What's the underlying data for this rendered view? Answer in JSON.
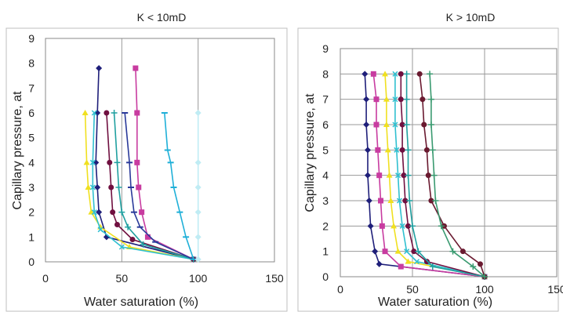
{
  "chart_data": [
    {
      "type": "line",
      "title": "K < 10mD",
      "xlabel": "Water saturation (%)",
      "ylabel": "Capillary pressure, at",
      "xlim": [
        0,
        150
      ],
      "ylim": [
        0,
        9
      ],
      "x_ticks": [
        0,
        50,
        100,
        150
      ],
      "y_ticks": [
        0,
        1,
        2,
        3,
        4,
        5,
        6,
        7,
        8,
        9
      ],
      "grid": "vertical",
      "legend": "none",
      "series": [
        {
          "color": "#1f1f7a",
          "marker": "diamond",
          "points": [
            [
              35,
              7.8
            ],
            [
              34,
              6
            ],
            [
              33,
              4
            ],
            [
              34,
              3
            ],
            [
              35,
              2
            ],
            [
              40,
              1
            ],
            [
              97,
              0.1
            ]
          ]
        },
        {
          "color": "#c83ca0",
          "marker": "square",
          "points": [
            [
              59,
              7.8
            ],
            [
              60,
              6
            ],
            [
              60,
              4
            ],
            [
              61,
              3
            ],
            [
              63,
              2
            ],
            [
              67,
              1
            ],
            [
              97,
              0.1
            ]
          ]
        },
        {
          "color": "#f0e020",
          "marker": "triangle",
          "points": [
            [
              26,
              6
            ],
            [
              27,
              4
            ],
            [
              28,
              3
            ],
            [
              30,
              2
            ],
            [
              36,
              1.4
            ],
            [
              55,
              0.6
            ],
            [
              97,
              0.1
            ]
          ]
        },
        {
          "color": "#30c0d0",
          "marker": "x",
          "points": [
            [
              32,
              6
            ],
            [
              31,
              4
            ],
            [
              31,
              3
            ],
            [
              32,
              2
            ],
            [
              36,
              1.3
            ],
            [
              50,
              0.6
            ],
            [
              97,
              0.1
            ]
          ]
        },
        {
          "color": "#701040",
          "marker": "circle",
          "points": [
            [
              40,
              6
            ],
            [
              42,
              4
            ],
            [
              43,
              3
            ],
            [
              44,
              2
            ],
            [
              47,
              1.5
            ],
            [
              57,
              0.9
            ],
            [
              97,
              0.1
            ]
          ]
        },
        {
          "color": "#20a0a0",
          "marker": "plus",
          "points": [
            [
              45,
              6
            ],
            [
              47,
              4
            ],
            [
              48,
              3
            ],
            [
              50,
              2
            ],
            [
              54,
              1.4
            ],
            [
              64,
              0.7
            ],
            [
              97,
              0.1
            ]
          ]
        },
        {
          "color": "#2a3a9a",
          "marker": "dash",
          "points": [
            [
              52,
              6
            ],
            [
              55,
              4
            ],
            [
              56,
              3
            ],
            [
              58,
              2
            ],
            [
              62,
              1.4
            ],
            [
              72,
              0.8
            ],
            [
              97,
              0.1
            ]
          ]
        },
        {
          "color": "#20b0d8",
          "marker": "dash",
          "points": [
            [
              78,
              6
            ],
            [
              80,
              4.5
            ],
            [
              82,
              4
            ],
            [
              84,
              3
            ],
            [
              88,
              2
            ],
            [
              92,
              1
            ],
            [
              97,
              0.1
            ]
          ]
        },
        {
          "color": "#c0ecf4",
          "marker": "diamond",
          "points": [
            [
              100,
              6
            ],
            [
              100,
              4
            ],
            [
              100,
              3
            ],
            [
              100,
              2
            ],
            [
              100,
              1
            ],
            [
              100,
              0.1
            ]
          ]
        }
      ]
    },
    {
      "type": "line",
      "title": "K > 10mD",
      "xlabel": "Water saturation (%)",
      "ylabel": "Capillary pressure, at",
      "xlim": [
        0,
        150
      ],
      "ylim": [
        0,
        9
      ],
      "x_ticks": [
        0,
        50,
        100,
        150
      ],
      "y_ticks": [
        0,
        1,
        2,
        3,
        4,
        5,
        6,
        7,
        8,
        9
      ],
      "grid": "both",
      "legend": "none",
      "series": [
        {
          "color": "#1f1f7a",
          "marker": "diamond",
          "points": [
            [
              17,
              8
            ],
            [
              18,
              7
            ],
            [
              18,
              6
            ],
            [
              19,
              5
            ],
            [
              19,
              4
            ],
            [
              20,
              3
            ],
            [
              21,
              2
            ],
            [
              24,
              1
            ],
            [
              27,
              0.5
            ],
            [
              100,
              0
            ]
          ]
        },
        {
          "color": "#c83ca0",
          "marker": "square",
          "points": [
            [
              23,
              8
            ],
            [
              25,
              7
            ],
            [
              25,
              6
            ],
            [
              26,
              5
            ],
            [
              27,
              4
            ],
            [
              28,
              3
            ],
            [
              29,
              2
            ],
            [
              31,
              1
            ],
            [
              42,
              0.4
            ],
            [
              100,
              0
            ]
          ]
        },
        {
          "color": "#f0e020",
          "marker": "triangle",
          "points": [
            [
              31,
              8
            ],
            [
              32,
              7
            ],
            [
              32,
              6
            ],
            [
              33,
              5
            ],
            [
              34,
              4
            ],
            [
              35,
              3
            ],
            [
              37,
              2
            ],
            [
              40,
              1
            ],
            [
              47,
              0.6
            ],
            [
              100,
              0
            ]
          ]
        },
        {
          "color": "#30c0d0",
          "marker": "x",
          "points": [
            [
              38,
              8
            ],
            [
              38,
              7
            ],
            [
              38,
              6
            ],
            [
              39,
              5
            ],
            [
              40,
              4
            ],
            [
              41,
              3
            ],
            [
              43,
              2
            ],
            [
              46,
              1
            ],
            [
              53,
              0.6
            ],
            [
              100,
              0
            ]
          ]
        },
        {
          "color": "#701040",
          "marker": "circle",
          "points": [
            [
              42,
              8
            ],
            [
              42,
              7
            ],
            [
              43,
              6
            ],
            [
              43,
              5
            ],
            [
              44,
              4
            ],
            [
              45,
              3
            ],
            [
              47,
              2
            ],
            [
              51,
              1
            ],
            [
              60,
              0.6
            ],
            [
              100,
              0
            ]
          ]
        },
        {
          "color": "#20a0a0",
          "marker": "plus",
          "points": [
            [
              46,
              8
            ],
            [
              46,
              7
            ],
            [
              46,
              6
            ],
            [
              47,
              5
            ],
            [
              47,
              4
            ],
            [
              48,
              3
            ],
            [
              50,
              2
            ],
            [
              54,
              1
            ],
            [
              64,
              0.4
            ],
            [
              100,
              0
            ]
          ]
        },
        {
          "color": "#6a1a30",
          "marker": "circle",
          "points": [
            [
              55,
              8
            ],
            [
              57,
              7
            ],
            [
              58,
              6
            ],
            [
              60,
              5
            ],
            [
              61,
              4
            ],
            [
              63,
              3
            ],
            [
              72,
              2
            ],
            [
              85,
              1
            ],
            [
              97,
              0.5
            ],
            [
              100,
              0
            ]
          ]
        },
        {
          "color": "#3a9a70",
          "marker": "plus",
          "points": [
            [
              62,
              8
            ],
            [
              63,
              7
            ],
            [
              63,
              6
            ],
            [
              64,
              5
            ],
            [
              65,
              4
            ],
            [
              66,
              3
            ],
            [
              70,
              2
            ],
            [
              78,
              1
            ],
            [
              92,
              0.4
            ],
            [
              100,
              0
            ]
          ]
        }
      ]
    }
  ]
}
